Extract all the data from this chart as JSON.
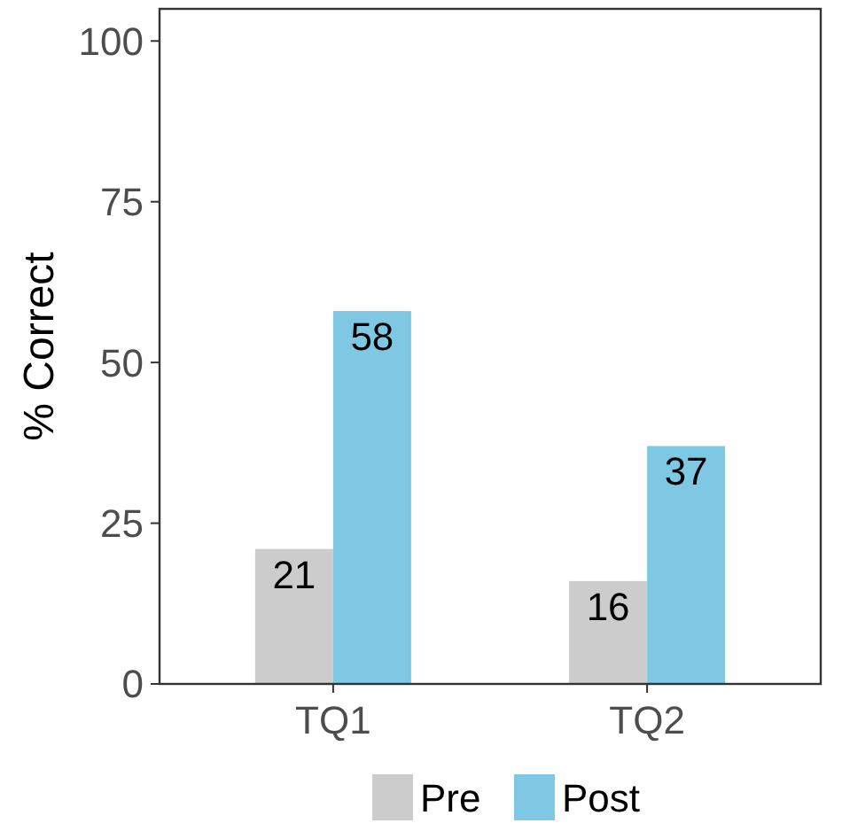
{
  "chart_data": {
    "type": "bar",
    "ylabel": "% Correct",
    "categories": [
      "TQ1",
      "TQ2"
    ],
    "series": [
      {
        "name": "Pre",
        "color": "#cccccc",
        "values": [
          21,
          16
        ]
      },
      {
        "name": "Post",
        "color": "#7ec8e3",
        "values": [
          58,
          37
        ]
      }
    ],
    "ylim": [
      0,
      105
    ],
    "yticks": [
      0,
      25,
      50,
      75,
      100
    ],
    "grid": false,
    "legend": "bottom",
    "data_labels": true
  }
}
